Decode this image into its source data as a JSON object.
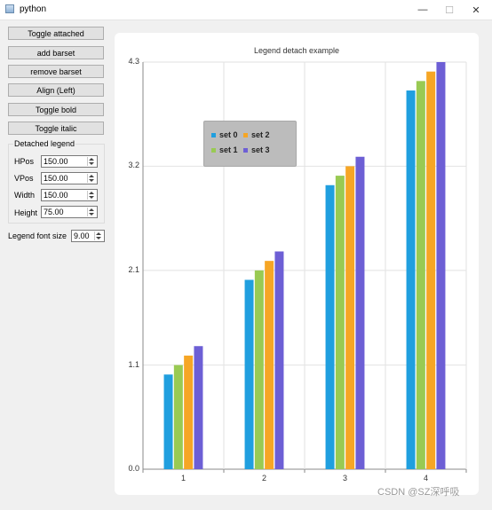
{
  "window": {
    "title": "python"
  },
  "controls": {
    "buttons": [
      "Toggle attached",
      "add barset",
      "remove barset",
      "Align (Left)",
      "Toggle bold",
      "Toggle italic"
    ],
    "group_title": "Detached legend",
    "fields": [
      {
        "label": "HPos",
        "value": "150.00"
      },
      {
        "label": "VPos",
        "value": "150.00"
      },
      {
        "label": "Width",
        "value": "150.00"
      },
      {
        "label": "Height",
        "value": "75.00"
      }
    ],
    "font_size": {
      "label": "Legend font size",
      "value": "9.00"
    }
  },
  "chart_data": {
    "type": "bar",
    "title": "Legend detach example",
    "categories": [
      "1",
      "2",
      "3",
      "4"
    ],
    "ylim": [
      0,
      4.3
    ],
    "yticks": [
      "4.3",
      "3.2",
      "2.1",
      "1.1",
      "0.0"
    ],
    "grid": true,
    "legend_placement": "detached, floating inside plot",
    "series": [
      {
        "name": "set 0",
        "color": "#209fdf",
        "values": [
          1.0,
          2.0,
          3.0,
          4.0
        ]
      },
      {
        "name": "set 1",
        "color": "#99ca53",
        "values": [
          1.1,
          2.1,
          3.1,
          4.1
        ]
      },
      {
        "name": "set 2",
        "color": "#f6a625",
        "values": [
          1.2,
          2.2,
          3.2,
          4.2
        ]
      },
      {
        "name": "set 3",
        "color": "#6d5fd5",
        "values": [
          1.3,
          2.3,
          3.3,
          4.3
        ]
      }
    ]
  },
  "watermark": "CSDN @SZ深呼吸"
}
